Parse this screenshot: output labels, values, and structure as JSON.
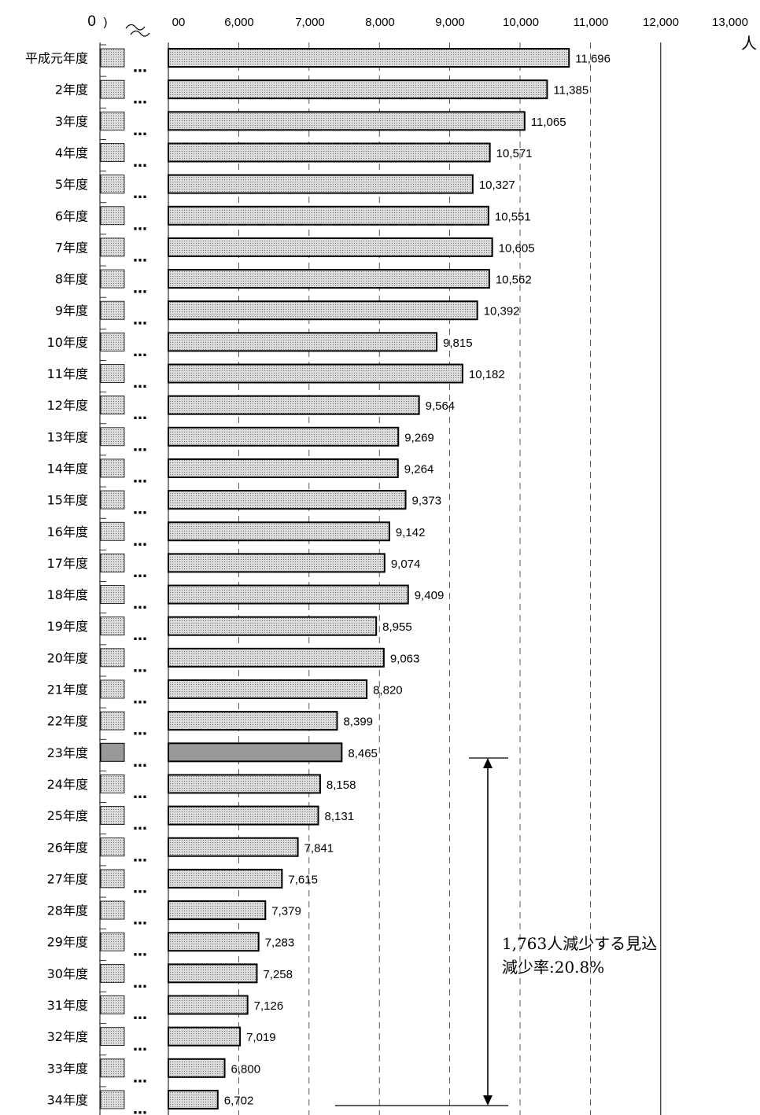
{
  "chart_data": {
    "type": "bar",
    "orientation": "horizontal",
    "axis_break": true,
    "xlim": [
      5000,
      13000
    ],
    "x_ticks": [
      "0",
      ")",
      "00",
      "6,000",
      "7,000",
      "8,000",
      "9,000",
      "10,000",
      "11,000",
      "12,000",
      "13,000"
    ],
    "unit_label": "人",
    "grid": true,
    "categories": [
      "平成元年度",
      "2年度",
      "3年度",
      "4年度",
      "5年度",
      "6年度",
      "7年度",
      "8年度",
      "9年度",
      "10年度",
      "11年度",
      "12年度",
      "13年度",
      "14年度",
      "15年度",
      "16年度",
      "17年度",
      "18年度",
      "19年度",
      "20年度",
      "21年度",
      "22年度",
      "23年度",
      "24年度",
      "25年度",
      "26年度",
      "27年度",
      "28年度",
      "29年度",
      "30年度",
      "31年度",
      "32年度",
      "33年度",
      "34年度"
    ],
    "values": [
      11696,
      11385,
      11065,
      10571,
      10327,
      10551,
      10605,
      10562,
      10392,
      9815,
      10182,
      9564,
      9269,
      9264,
      9373,
      9142,
      9074,
      9409,
      8955,
      9063,
      8820,
      8399,
      8465,
      8158,
      8131,
      7841,
      7615,
      7379,
      7283,
      7258,
      7126,
      7019,
      6800,
      6702
    ],
    "value_labels": [
      "11,696",
      "11,385",
      "11,065",
      "10,571",
      "10,327",
      "10,551",
      "10,605",
      "10,562",
      "10,392",
      "9,815",
      "10,182",
      "9,564",
      "9,269",
      "9,264",
      "9,373",
      "9,142",
      "9,074",
      "9,409",
      "8,955",
      "9,063",
      "8,820",
      "8,399",
      "8,465",
      "8,158",
      "8,131",
      "7,841",
      "7,615",
      "7,379",
      "7,283",
      "7,258",
      "7,126",
      "7,019",
      "6,800",
      "6,702"
    ],
    "highlight_index": 22,
    "colors": {
      "bar": "#dcdcdc",
      "highlight": "#999999",
      "stroke": "#000000"
    },
    "annotation": {
      "line1": "1,763人減少する見込",
      "line2": "減少率:20.8%"
    }
  }
}
